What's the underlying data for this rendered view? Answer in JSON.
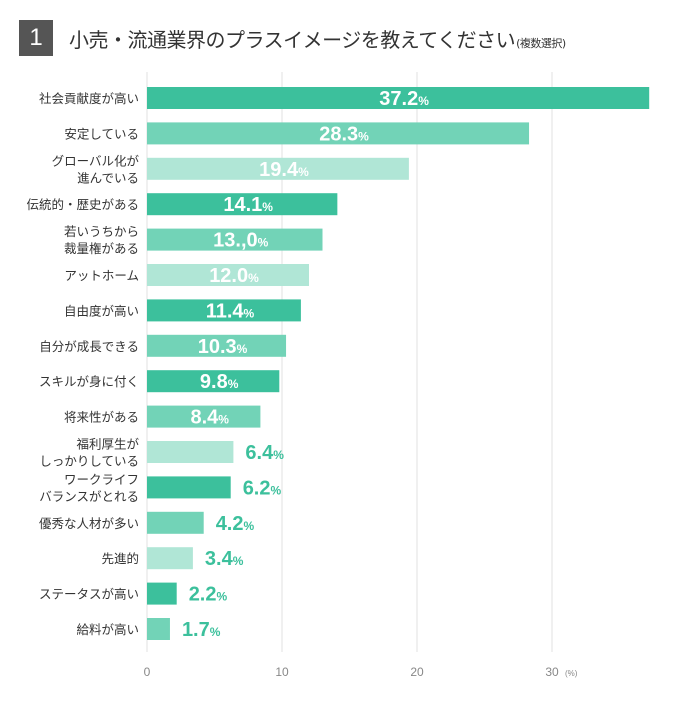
{
  "header": {
    "number": "1",
    "title": "小売・流通業界のプラスイメージを教えてください",
    "note": "(複数選択)"
  },
  "colors": {
    "dark": "#3cc09c",
    "medium": "#72d3b7",
    "light": "#b0e6d6",
    "grid": "#e0e0e0",
    "axis_text": "#888888"
  },
  "chart_data": {
    "type": "bar",
    "orientation": "horizontal",
    "title": "小売・流通業界のプラスイメージを教えてください(複数選択)",
    "categories": [
      [
        "社会貢献度が高い"
      ],
      [
        "安定している"
      ],
      [
        "グローバル化が",
        "進んでいる"
      ],
      [
        "伝統的・歴史がある"
      ],
      [
        "若いうちから",
        "裁量権がある"
      ],
      [
        "アットホーム"
      ],
      [
        "自由度が高い"
      ],
      [
        "自分が成長できる"
      ],
      [
        "スキルが身に付く"
      ],
      [
        "将来性がある"
      ],
      [
        "福利厚生が",
        "しっかりしている"
      ],
      [
        "ワークライフ",
        "バランスがとれる"
      ],
      [
        "優秀な人材が多い"
      ],
      [
        "先進的"
      ],
      [
        "ステータスが高い"
      ],
      [
        "給料が高い"
      ]
    ],
    "values": [
      37.2,
      28.3,
      19.4,
      14.1,
      13.0,
      12.0,
      11.4,
      10.3,
      9.8,
      8.4,
      6.4,
      6.2,
      4.2,
      3.4,
      2.2,
      1.7
    ],
    "value_labels": [
      "37.2",
      "28.3",
      "19.4",
      "14.1",
      "13.,0",
      "12.0",
      "11.4",
      "10.3",
      "9.8",
      "8.4",
      "6.4",
      "6.2",
      "4.2",
      "3.4",
      "2.2",
      "1.7"
    ],
    "shades": [
      "dark",
      "medium",
      "light",
      "dark",
      "medium",
      "light",
      "dark",
      "medium",
      "dark",
      "medium",
      "light",
      "dark",
      "medium",
      "light",
      "dark",
      "medium"
    ],
    "unit_suffix": "%",
    "xlim": [
      0,
      37.2
    ],
    "xticks": [
      0,
      10,
      20,
      30
    ],
    "xtick_labels": [
      "0",
      "10",
      "20",
      "30"
    ],
    "xunit": "(%)",
    "grid": true
  }
}
